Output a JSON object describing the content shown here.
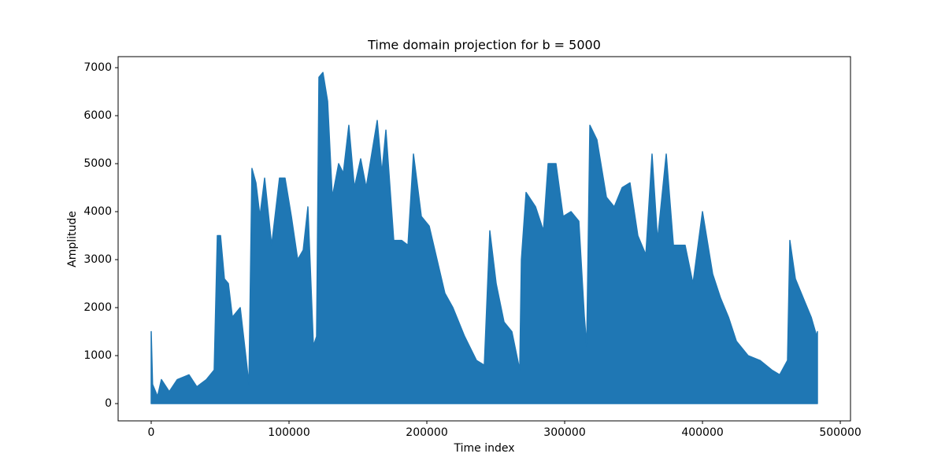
{
  "chart_data": {
    "type": "area",
    "title": "Time domain projection for b = 5000",
    "x_label": "Time index",
    "y_label": "Amplitude",
    "color": "#1f77b4",
    "x": [
      0,
      1000,
      4600,
      7400,
      13100,
      18900,
      27400,
      33100,
      40000,
      45700,
      48000,
      50300,
      53100,
      56000,
      58900,
      64600,
      68600,
      70900,
      73100,
      76000,
      78900,
      82300,
      87400,
      93100,
      97100,
      101700,
      106300,
      110300,
      113700,
      117700,
      120000,
      121700,
      124600,
      128000,
      131400,
      136000,
      139400,
      143400,
      147400,
      152000,
      156000,
      160000,
      164000,
      167400,
      170300,
      176000,
      181700,
      186300,
      190300,
      196000,
      201700,
      207400,
      213100,
      218900,
      227400,
      236000,
      241700,
      245700,
      250300,
      256000,
      261700,
      267400,
      268600,
      272000,
      278900,
      284600,
      288000,
      293700,
      298900,
      304600,
      310300,
      314300,
      316000,
      318300,
      323400,
      330300,
      336000,
      341700,
      347400,
      353100,
      358900,
      363400,
      367400,
      373700,
      378900,
      387400,
      393100,
      400000,
      407400,
      413100,
      418900,
      424600,
      433100,
      441700,
      450300,
      456000,
      461700,
      463400,
      467400,
      473100,
      478900,
      482900,
      483400
    ],
    "values": [
      1500,
      400,
      150,
      500,
      250,
      500,
      600,
      350,
      500,
      700,
      3500,
      3500,
      2600,
      2500,
      1800,
      2000,
      1000,
      400,
      4900,
      4600,
      3900,
      4700,
      3300,
      4700,
      4700,
      3900,
      3000,
      3200,
      4100,
      1200,
      1400,
      6800,
      6900,
      6300,
      4300,
      5000,
      4800,
      5800,
      4500,
      5100,
      4500,
      5200,
      5900,
      4800,
      5700,
      3400,
      3400,
      3300,
      5200,
      3900,
      3700,
      3000,
      2300,
      2000,
      1400,
      900,
      800,
      3600,
      2500,
      1700,
      1500,
      700,
      3000,
      4400,
      4100,
      3600,
      5000,
      5000,
      3900,
      4000,
      3800,
      1800,
      1200,
      5800,
      5500,
      4300,
      4100,
      4500,
      4600,
      3500,
      3100,
      5200,
      3400,
      5200,
      3300,
      3300,
      2500,
      4000,
      2700,
      2200,
      1800,
      1300,
      1000,
      900,
      700,
      600,
      900,
      3400,
      2600,
      2200,
      1800,
      1400,
      1500
    ],
    "xlim": [
      -24000,
      507400
    ],
    "ylim": [
      -360,
      7230
    ],
    "xticks": [
      0,
      100000,
      200000,
      300000,
      400000,
      500000
    ],
    "yticks": [
      0,
      1000,
      2000,
      3000,
      4000,
      5000,
      6000,
      7000
    ],
    "grid": false
  }
}
